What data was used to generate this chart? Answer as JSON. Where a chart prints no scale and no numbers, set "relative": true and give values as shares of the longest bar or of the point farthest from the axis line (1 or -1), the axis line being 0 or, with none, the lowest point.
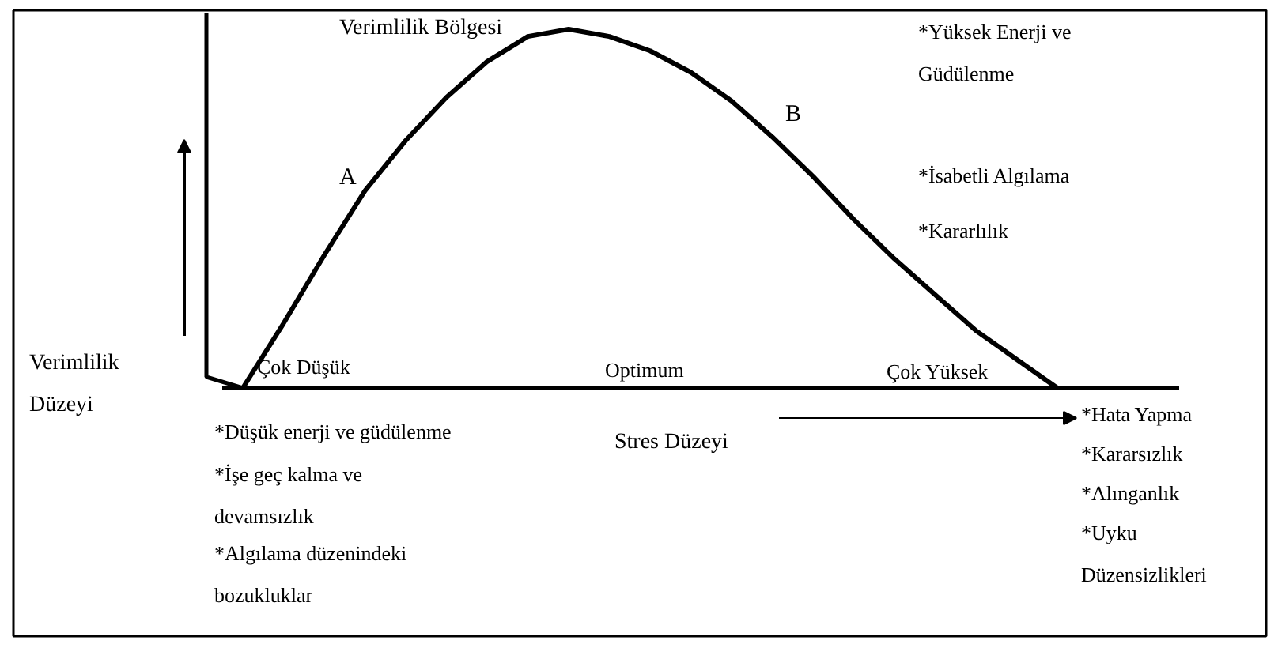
{
  "chart_data": {
    "type": "line",
    "relative": true,
    "title": "Verimlilik Bölgesi",
    "xlabel": "Stres Düzeyi",
    "ylabel": "Verimlilik\nDüzeyi",
    "color": "#000000",
    "categories": [
      null,
      null,
      null,
      null,
      null,
      null,
      null,
      null,
      null,
      null,
      null,
      null,
      null,
      null,
      null,
      null,
      null,
      null,
      null,
      null,
      null
    ],
    "values": [
      0,
      0.18,
      0.37,
      0.55,
      0.69,
      0.81,
      0.91,
      0.98,
      1.0,
      0.98,
      0.94,
      0.88,
      0.8,
      0.7,
      0.59,
      0.47,
      0.36,
      0.26,
      0.16,
      0.08,
      0
    ],
    "annotations": [
      "A",
      "B",
      "Çok Düşük",
      "Optimum",
      "Çok Yüksek",
      "*Yüksek Enerji ve\nGüdülenme",
      "*İsabetli Algılama",
      "*Kararlılık",
      "*Düşük enerji ve güdülenme",
      "*İşe geç kalma ve\ndevamsızlık",
      "*Algılama düzenindeki\nbozukluklar",
      "*Hata Yapma",
      "*Kararsızlık",
      "*Alınganlık",
      "*Uyku\nDüzensizlikleri"
    ]
  }
}
